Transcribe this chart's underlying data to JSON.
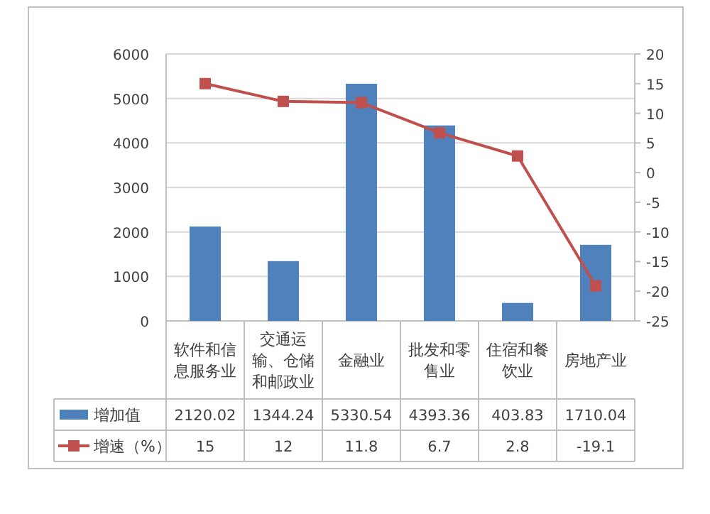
{
  "chart_data": {
    "type": "bar",
    "categories": [
      "软件和信息服务业",
      "交通运输、仓储和邮政业",
      "金融业",
      "批发和零售业",
      "住宿和餐饮业",
      "房地产业"
    ],
    "series": [
      {
        "name": "增加值",
        "color": "#4f81bd",
        "values": [
          2120.02,
          1344.24,
          5330.54,
          4393.36,
          403.83,
          1710.04
        ]
      },
      {
        "name": "增速（%）",
        "type": "line",
        "axis": "y2",
        "color": "#c0504d",
        "marker": "square",
        "values": [
          15,
          12,
          11.8,
          6.7,
          2.8,
          -19.1
        ]
      }
    ],
    "ylim": [
      0,
      6000
    ],
    "yticks": [
      0,
      1000,
      2000,
      3000,
      4000,
      5000,
      6000
    ],
    "y2lim": [
      -25,
      20
    ],
    "y2ticks": [
      -25,
      -20,
      -15,
      -10,
      -5,
      0,
      5,
      10,
      15,
      20
    ],
    "grid": "y",
    "legend": "bottom",
    "data_labels": true
  }
}
